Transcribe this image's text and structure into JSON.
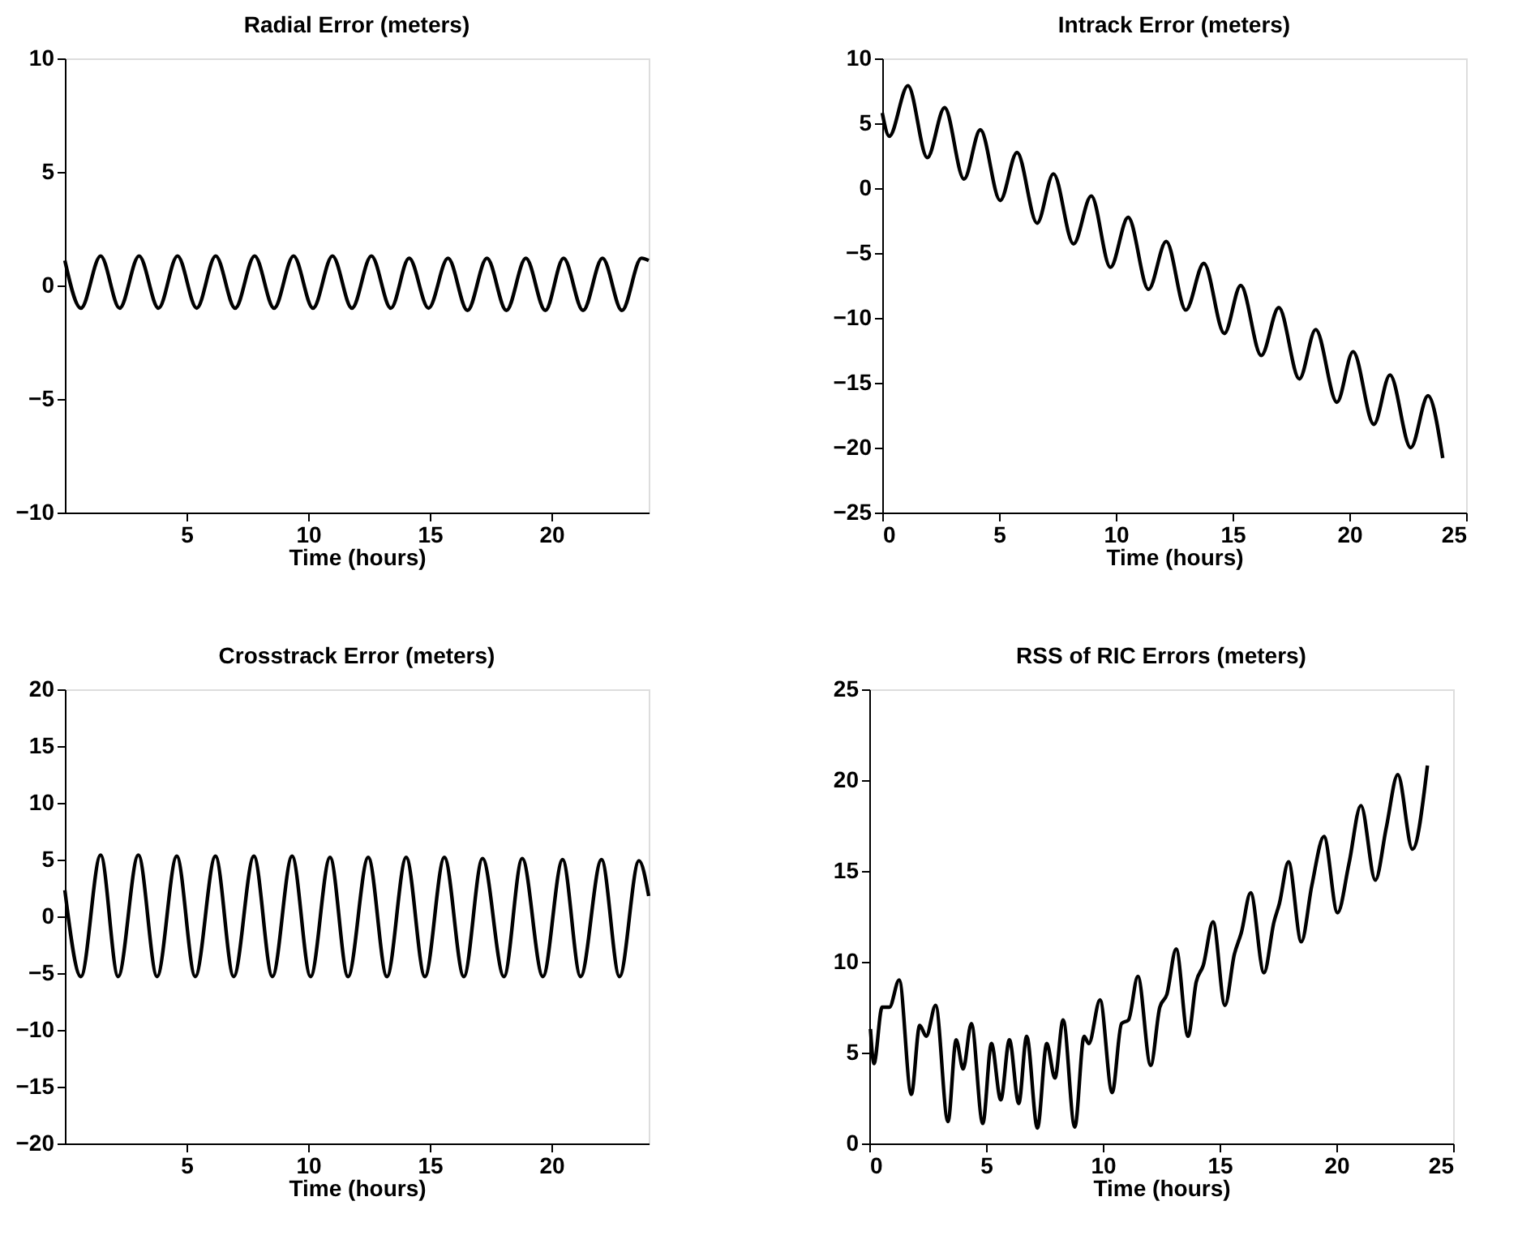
{
  "chart_data": [
    {
      "type": "line",
      "title": "Radial Error (meters)",
      "xlabel": "Time (hours)",
      "xlim": [
        0,
        24
      ],
      "xticks": [
        5,
        10,
        15,
        20
      ],
      "ylim": [
        -10,
        10
      ],
      "yticks": [
        -10,
        -5,
        0,
        5,
        10
      ],
      "grid": false,
      "x": [
        0,
        0.66,
        1.47,
        2.25,
        3.05,
        3.85,
        4.63,
        5.42,
        6.2,
        7.0,
        7.8,
        8.6,
        9.4,
        10.2,
        11.0,
        11.8,
        12.6,
        13.4,
        14.15,
        14.95,
        15.75,
        16.55,
        17.35,
        18.15,
        18.95,
        19.75,
        20.5,
        21.3,
        22.1,
        22.9,
        23.7,
        24
      ],
      "series": [
        {
          "color": "#000000",
          "values": [
            1.1,
            -1.0,
            1.3,
            -1.0,
            1.3,
            -1.0,
            1.3,
            -1.0,
            1.3,
            -1.0,
            1.3,
            -1.0,
            1.3,
            -1.0,
            1.3,
            -1.0,
            1.3,
            -1.0,
            1.2,
            -1.0,
            1.2,
            -1.1,
            1.2,
            -1.1,
            1.2,
            -1.1,
            1.2,
            -1.1,
            1.2,
            -1.1,
            1.2,
            1.1
          ]
        }
      ]
    },
    {
      "type": "line",
      "title": "Intrack Error (meters)",
      "xlabel": "Time (hours)",
      "xlim": [
        0,
        25
      ],
      "xticks": [
        0,
        5,
        10,
        15,
        20,
        25
      ],
      "ylim": [
        -25,
        10
      ],
      "yticks": [
        -25,
        -20,
        -15,
        -10,
        -5,
        0,
        5,
        10
      ],
      "grid": false,
      "x": [
        0,
        0.3,
        1.1,
        1.93,
        2.67,
        3.5,
        4.2,
        5.05,
        5.77,
        6.63,
        7.33,
        8.19,
        8.95,
        9.77,
        10.53,
        11.4,
        12.16,
        13.0,
        13.77,
        14.65,
        15.35,
        16.23,
        16.98,
        17.86,
        18.56,
        19.47,
        20.16,
        21.05,
        21.74,
        22.63,
        23.37,
        24.0
      ],
      "series": [
        {
          "color": "#000000",
          "values": [
            5.8,
            4.0,
            7.9,
            2.35,
            6.2,
            0.7,
            4.5,
            -0.95,
            2.75,
            -2.7,
            1.1,
            -4.3,
            -0.6,
            -6.1,
            -2.25,
            -7.8,
            -4.1,
            -9.4,
            -5.8,
            -11.2,
            -7.5,
            -12.9,
            -9.2,
            -14.7,
            -10.9,
            -16.5,
            -12.6,
            -18.2,
            -14.4,
            -20.0,
            -16.0,
            -20.8
          ]
        }
      ]
    },
    {
      "type": "line",
      "title": "Crosstrack Error (meters)",
      "xlabel": "Time (hours)",
      "xlim": [
        0,
        24
      ],
      "xticks": [
        5,
        10,
        15,
        20
      ],
      "ylim": [
        -20,
        20
      ],
      "yticks": [
        -20,
        -15,
        -10,
        -5,
        0,
        5,
        10,
        15,
        20
      ],
      "grid": false,
      "x": [
        0,
        0.66,
        1.47,
        2.19,
        3.02,
        3.79,
        4.6,
        5.36,
        6.19,
        6.94,
        7.77,
        8.53,
        9.34,
        10.1,
        10.9,
        11.64,
        12.47,
        13.24,
        14.03,
        14.8,
        15.6,
        16.4,
        17.17,
        18.05,
        18.8,
        19.65,
        20.46,
        21.2,
        22.06,
        22.8,
        23.6,
        24
      ],
      "series": [
        {
          "color": "#000000",
          "values": [
            2.3,
            -5.3,
            5.4,
            -5.3,
            5.4,
            -5.3,
            5.3,
            -5.3,
            5.3,
            -5.3,
            5.3,
            -5.3,
            5.3,
            -5.3,
            5.2,
            -5.3,
            5.2,
            -5.3,
            5.2,
            -5.3,
            5.2,
            -5.3,
            5.1,
            -5.3,
            5.1,
            -5.3,
            5.0,
            -5.3,
            5.0,
            -5.3,
            4.9,
            1.8
          ]
        }
      ]
    },
    {
      "type": "line",
      "title": "RSS of RIC Errors (meters)",
      "xlabel": "Time (hours)",
      "xlim": [
        0,
        25
      ],
      "xticks": [
        0,
        5,
        10,
        15,
        20,
        25
      ],
      "ylim": [
        0,
        25
      ],
      "yticks": [
        0,
        5,
        10,
        15,
        20,
        25
      ],
      "grid": false,
      "x": [
        0.05,
        0.2,
        0.55,
        0.86,
        1.28,
        1.8,
        2.16,
        2.44,
        2.84,
        3.37,
        3.72,
        4.02,
        4.37,
        4.86,
        5.23,
        5.63,
        6.0,
        6.4,
        6.74,
        7.2,
        7.6,
        7.95,
        8.3,
        8.8,
        9.2,
        9.4,
        9.88,
        10.4,
        10.8,
        11.1,
        11.5,
        12.05,
        12.44,
        12.74,
        13.14,
        13.65,
        14.0,
        14.3,
        14.72,
        15.23,
        15.63,
        15.93,
        16.33,
        16.9,
        17.33,
        17.56,
        17.95,
        18.5,
        18.95,
        19.47,
        20.05,
        20.54,
        21.05,
        21.67,
        22.14,
        22.63,
        23.26,
        23.9
      ],
      "series": [
        {
          "color": "#000000",
          "values": [
            6.3,
            4.4,
            7.5,
            7.5,
            9.0,
            2.7,
            6.5,
            5.9,
            7.6,
            1.2,
            5.7,
            4.1,
            6.6,
            1.1,
            5.5,
            2.4,
            5.7,
            2.2,
            5.9,
            0.85,
            5.5,
            3.6,
            6.8,
            0.9,
            5.9,
            5.5,
            7.9,
            2.8,
            6.6,
            6.8,
            9.2,
            4.3,
            7.5,
            8.2,
            10.7,
            5.9,
            8.9,
            9.8,
            12.2,
            7.6,
            10.4,
            11.6,
            13.8,
            9.4,
            12.2,
            13.2,
            15.5,
            11.1,
            14.2,
            16.9,
            12.7,
            15.4,
            18.6,
            14.5,
            17.4,
            20.3,
            16.2,
            20.8
          ]
        }
      ]
    }
  ]
}
